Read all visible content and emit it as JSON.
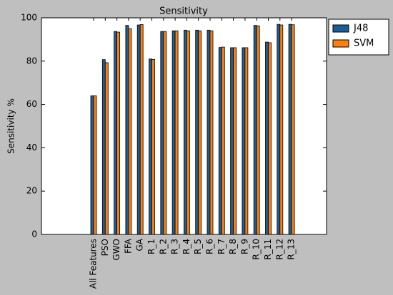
{
  "chart_data": {
    "type": "bar",
    "title": "Sensitivity",
    "y_label": "Sensitivity %",
    "categories": [
      "All Features",
      "PSO",
      "GWO",
      "FFA",
      "GA",
      "R_1",
      "R_2",
      "R_3",
      "R_4",
      "R_5",
      "R_6",
      "R_7",
      "R_8",
      "R_9",
      "R_10",
      "R_11",
      "R_12",
      "R_13"
    ],
    "series": [
      {
        "name": "J48",
        "color": "#1b5e95",
        "values": [
          64,
          80.7,
          93.7,
          96.5,
          96.7,
          81,
          93.7,
          94,
          94.3,
          94.3,
          94.3,
          86.3,
          86.2,
          86.2,
          96.5,
          88.8,
          97,
          97
        ]
      },
      {
        "name": "SVM",
        "color": "#ff7f0e",
        "values": [
          64,
          79.3,
          93.4,
          95,
          96.9,
          80.8,
          93.7,
          94,
          94,
          94,
          94,
          86.5,
          86.2,
          86.2,
          96.3,
          88.5,
          96.7,
          96.8
        ]
      }
    ],
    "ylim": [
      0,
      100
    ],
    "yticks": [
      0,
      20,
      40,
      60,
      80,
      100
    ],
    "grid": false,
    "legend": "outside-right"
  }
}
